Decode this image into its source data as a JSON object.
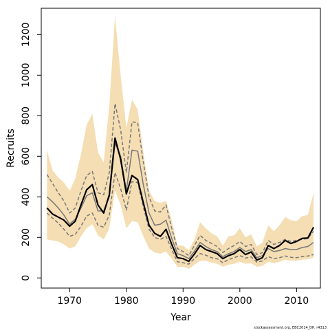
{
  "chart_data": {
    "type": "line",
    "xlabel": "Year",
    "ylabel": "Recruits",
    "xlim": [
      1965,
      2014.2
    ],
    "ylim": [
      -50,
      1330
    ],
    "x_ticks": [
      1970,
      1980,
      1990,
      2000,
      2010
    ],
    "y_ticks": [
      0,
      200,
      400,
      600,
      800,
      1000,
      1200
    ],
    "x_tick_labels": [
      "1970",
      "1980",
      "1990",
      "2000",
      "2010"
    ],
    "y_tick_labels": [
      "0",
      "200",
      "400",
      "600",
      "800",
      "1000",
      "1200"
    ],
    "grid": false,
    "credit": "stockassessment.org, EBC2014_DP, r4313",
    "x": [
      1966,
      1967,
      1968,
      1969,
      1970,
      1971,
      1972,
      1973,
      1974,
      1975,
      1976,
      1977,
      1978,
      1979,
      1980,
      1981,
      1982,
      1983,
      1984,
      1985,
      1986,
      1987,
      1988,
      1989,
      1990,
      1991,
      1992,
      1993,
      1994,
      1995,
      1996,
      1997,
      1998,
      1999,
      2000,
      2001,
      2002,
      2003,
      2004,
      2005,
      2006,
      2007,
      2008,
      2009,
      2010,
      2011,
      2012,
      2013
    ],
    "series": [
      {
        "role": "estimate",
        "color": "#000000",
        "values": [
          345,
          315,
          300,
          285,
          255,
          280,
          360,
          435,
          460,
          360,
          320,
          410,
          690,
          585,
          415,
          505,
          485,
          370,
          260,
          220,
          205,
          240,
          165,
          100,
          95,
          82,
          118,
          160,
          140,
          130,
          120,
          95,
          110,
          120,
          140,
          115,
          128,
          88,
          100,
          160,
          145,
          160,
          185,
          170,
          180,
          195,
          197,
          250
        ]
      },
      {
        "role": "estimate-alt",
        "color": "#777777",
        "values": [
          400,
          375,
          345,
          310,
          265,
          290,
          345,
          405,
          420,
          330,
          330,
          400,
          665,
          600,
          430,
          630,
          625,
          460,
          320,
          260,
          265,
          285,
          195,
          120,
          110,
          95,
          132,
          175,
          155,
          140,
          130,
          105,
          120,
          130,
          150,
          130,
          140,
          100,
          110,
          145,
          130,
          135,
          145,
          140,
          140,
          150,
          155,
          175
        ]
      },
      {
        "role": "upper-interval",
        "color": "#777777",
        "values": [
          510,
          465,
          420,
          380,
          320,
          345,
          430,
          505,
          525,
          420,
          410,
          520,
          860,
          730,
          520,
          770,
          765,
          570,
          400,
          330,
          325,
          360,
          245,
          145,
          130,
          110,
          160,
          210,
          185,
          170,
          155,
          125,
          145,
          160,
          180,
          155,
          165,
          115,
          125,
          185,
          165,
          175,
          190,
          180,
          185,
          190,
          195,
          230
        ]
      },
      {
        "role": "lower-interval",
        "color": "#777777",
        "values": [
          320,
          295,
          270,
          240,
          205,
          215,
          255,
          305,
          320,
          260,
          250,
          310,
          520,
          440,
          335,
          475,
          470,
          350,
          240,
          200,
          190,
          205,
          140,
          80,
          75,
          68,
          95,
          120,
          112,
          100,
          95,
          75,
          90,
          100,
          110,
          98,
          104,
          78,
          84,
          105,
          95,
          100,
          108,
          102,
          100,
          105,
          108,
          115
        ]
      }
    ],
    "band": {
      "color": "#f5deb3",
      "upper": [
        630,
        530,
        495,
        470,
        430,
        490,
        610,
        755,
        810,
        620,
        570,
        850,
        1290,
        1000,
        740,
        880,
        830,
        620,
        430,
        380,
        370,
        380,
        285,
        160,
        160,
        135,
        190,
        275,
        245,
        220,
        205,
        160,
        205,
        210,
        245,
        200,
        215,
        155,
        175,
        260,
        230,
        260,
        300,
        285,
        280,
        305,
        310,
        420
      ],
      "lower": [
        190,
        185,
        180,
        165,
        145,
        155,
        205,
        245,
        265,
        210,
        190,
        245,
        430,
        360,
        245,
        280,
        275,
        205,
        145,
        125,
        120,
        130,
        95,
        55,
        55,
        45,
        65,
        85,
        85,
        75,
        70,
        55,
        65,
        70,
        80,
        70,
        72,
        55,
        60,
        80,
        72,
        80,
        90,
        85,
        85,
        90,
        92,
        100
      ]
    }
  }
}
